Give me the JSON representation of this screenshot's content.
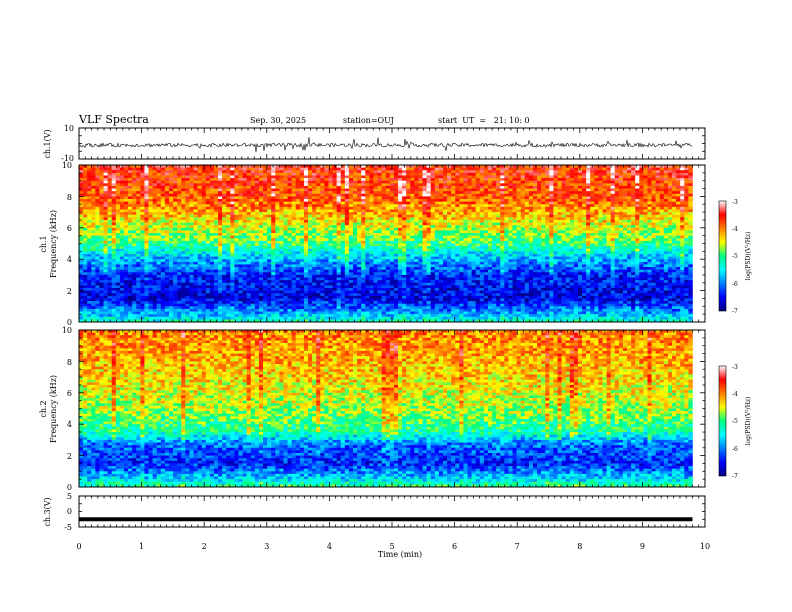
{
  "header": {
    "title": "VLF Spectra",
    "date": "Sep. 30, 2025",
    "station": "station=OUJ",
    "start_ut": "start  UT  =   21: 10: 0"
  },
  "chart_data": [
    {
      "type": "line",
      "panel": "ch1-waveform",
      "ylabel": "ch.1(V)",
      "ylim": [
        -10,
        10
      ],
      "yticks": [
        "10",
        "-10"
      ],
      "trace_color": "#000000",
      "trace_baseline": -1,
      "trace_noise": 1.2
    },
    {
      "type": "heatmap",
      "panel": "ch1-spectrogram",
      "ylabel_top": "ch.1",
      "ylabel": "Frequency (kHz)",
      "xlim": [
        0,
        10
      ],
      "ylim": [
        0,
        10
      ],
      "yticks": [
        "0",
        "2",
        "4",
        "6",
        "8",
        "10"
      ],
      "data_end_min": 9.8,
      "colorbar": {
        "label": "log(PSD)(V²/Hz)",
        "range": [
          -7,
          -3
        ],
        "ticks": [
          "-3",
          "-4",
          "-5",
          "-6",
          "-7"
        ]
      },
      "profile_logpsd": [
        {
          "f": 0.0,
          "v": -5.2
        },
        {
          "f": 0.5,
          "v": -5.8
        },
        {
          "f": 1.5,
          "v": -6.6
        },
        {
          "f": 3.0,
          "v": -6.4
        },
        {
          "f": 4.0,
          "v": -5.8
        },
        {
          "f": 5.0,
          "v": -5.0
        },
        {
          "f": 6.0,
          "v": -4.6
        },
        {
          "f": 7.0,
          "v": -4.2
        },
        {
          "f": 8.0,
          "v": -3.8
        },
        {
          "f": 10.0,
          "v": -3.6
        }
      ]
    },
    {
      "type": "heatmap",
      "panel": "ch2-spectrogram",
      "ylabel_top": "ch.2",
      "ylabel": "Frequency (kHz)",
      "xlim": [
        0,
        10
      ],
      "ylim": [
        0,
        10
      ],
      "yticks": [
        "0",
        "2",
        "4",
        "6",
        "8",
        "10"
      ],
      "data_end_min": 9.8,
      "colorbar": {
        "label": "log(PSD)(V²/Hz)",
        "range": [
          -7,
          -3
        ],
        "ticks": [
          "-3",
          "-4",
          "-5",
          "-6",
          "-7"
        ]
      },
      "profile_logpsd": [
        {
          "f": 0.0,
          "v": -5.0
        },
        {
          "f": 0.5,
          "v": -5.6
        },
        {
          "f": 1.5,
          "v": -6.4
        },
        {
          "f": 2.8,
          "v": -6.0
        },
        {
          "f": 3.5,
          "v": -5.2
        },
        {
          "f": 4.5,
          "v": -4.8
        },
        {
          "f": 6.0,
          "v": -4.5
        },
        {
          "f": 8.0,
          "v": -4.2
        },
        {
          "f": 10.0,
          "v": -4.0
        }
      ]
    },
    {
      "type": "line",
      "panel": "ch3-waveform",
      "ylabel": "ch.3(V)",
      "ylim": [
        -5,
        5
      ],
      "yticks": [
        "5",
        "0",
        "-5"
      ],
      "trace_color": "#000000",
      "trace_value": -2.5
    }
  ],
  "xaxis": {
    "label": "Time (min)",
    "range": [
      0,
      10
    ],
    "ticks": [
      "0",
      "1",
      "2",
      "3",
      "4",
      "5",
      "6",
      "7",
      "8",
      "9",
      "10"
    ]
  }
}
